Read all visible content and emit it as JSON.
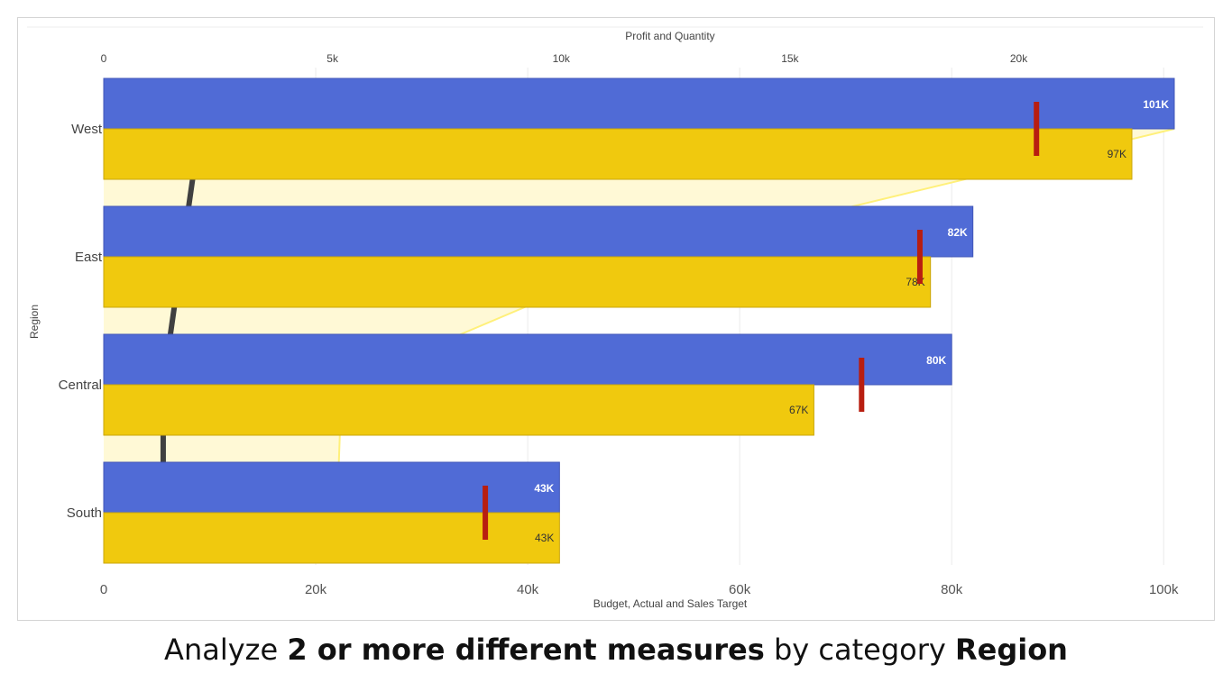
{
  "chart_data": {
    "type": "bar",
    "categories": [
      "West",
      "East",
      "Central",
      "South"
    ],
    "y_axis_label": "Region",
    "x_axis_bottom": {
      "label": "Budget, Actual and Sales Target",
      "range": [
        0,
        101000
      ],
      "ticks": [
        0,
        20000,
        40000,
        60000,
        80000,
        100000
      ],
      "tick_labels": [
        "0",
        "20k",
        "40k",
        "60k",
        "80k",
        "100k"
      ]
    },
    "x_axis_top": {
      "label": "Profit and Quantity",
      "range": [
        0,
        23400
      ],
      "ticks": [
        0,
        5000,
        10000,
        15000,
        20000
      ],
      "tick_labels": [
        "0",
        "5k",
        "10k",
        "15k",
        "20k"
      ]
    },
    "series": [
      {
        "kind": "bar",
        "values": [
          101000,
          82000,
          80000,
          43000
        ],
        "labels": [
          "101K",
          "82K",
          "80K",
          "43K"
        ],
        "color": "#506bd6"
      },
      {
        "kind": "bar",
        "values": [
          97000,
          78000,
          67000,
          43000
        ],
        "labels": [
          "97K",
          "78K",
          "67K",
          "43K"
        ],
        "color": "#f0c90e"
      },
      {
        "kind": "target",
        "values": [
          88000,
          77000,
          71500,
          36000
        ],
        "color": "#b81e10"
      },
      {
        "kind": "area",
        "axis": "top",
        "values": [
          23400,
          11800,
          5200,
          5100
        ],
        "color": "#fff9d6"
      },
      {
        "kind": "line",
        "axis": "top",
        "values": [
          2100,
          1700,
          1300,
          1300
        ],
        "color": "#404040"
      }
    ],
    "grid": true,
    "legend": "none"
  },
  "caption": {
    "pre": "Analyze ",
    "bold1": "2 or more different measures",
    "mid": " by category ",
    "bold2": "Region"
  }
}
